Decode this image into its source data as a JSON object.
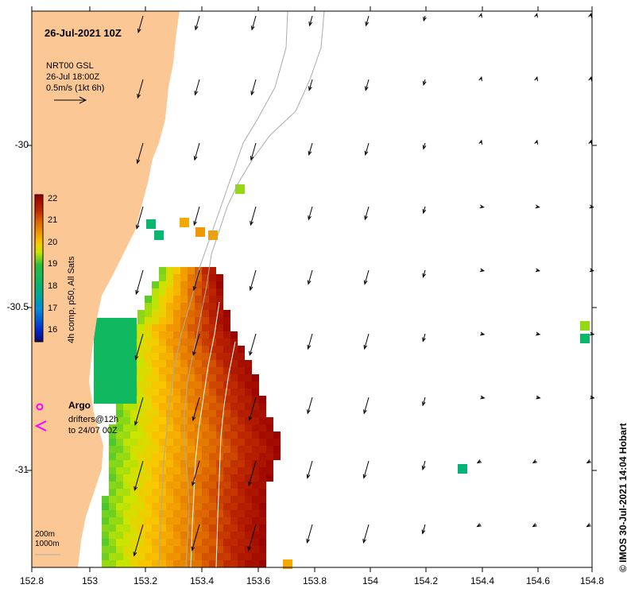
{
  "title": "26-Jul-2021 10Z",
  "current_legend": {
    "line1": "NRT00 GSL",
    "line2": "26-Jul 18:00Z",
    "line3": "0.5m/s (1kt 6h)"
  },
  "colorbar": {
    "title": "4h comp, p50, All Sats",
    "ticks": [
      "22",
      "21",
      "20",
      "19",
      "18",
      "17",
      "16"
    ],
    "min": 15.5,
    "max": 22.2
  },
  "argo": {
    "label": "Argo"
  },
  "drifters": {
    "line1": "drifters@12h",
    "line2": "to 24/07 00Z"
  },
  "depth_legend": {
    "line1": "200m",
    "line2": "1000m"
  },
  "credit": "© IMOS 30-Jul-2021 14:04 Hobart",
  "axes": {
    "x_ticks": [
      "152.8",
      "153",
      "153.2",
      "153.4",
      "153.6",
      "153.8",
      "154",
      "154.2",
      "154.4",
      "154.6",
      "154.8"
    ],
    "y_ticks": [
      "-30",
      "-30.5",
      "-31"
    ]
  },
  "colors": {
    "land": "#fbc895",
    "arrow": "#000000",
    "argo": "#ff00ff",
    "bathy": "#aaaaaa"
  }
}
